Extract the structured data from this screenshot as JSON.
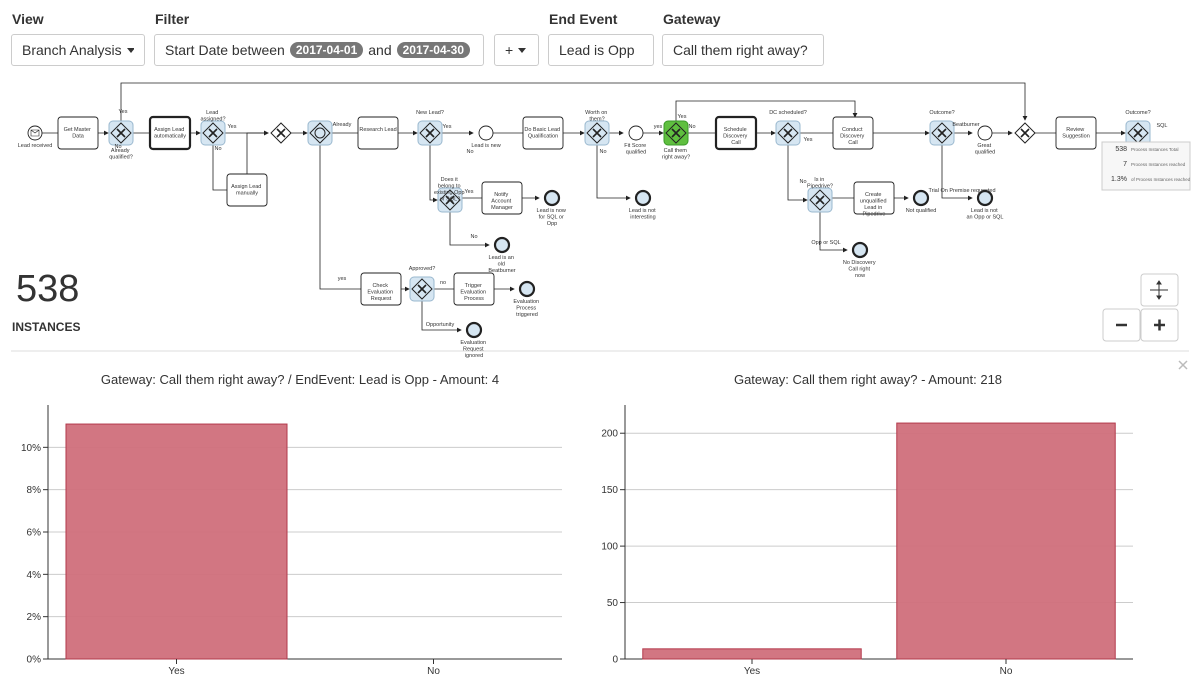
{
  "toolbar": {
    "view_label": "View",
    "view_value": "Branch Analysis",
    "filter_label": "Filter",
    "filter_text": "Start Date between",
    "start_date": "2017-04-01",
    "and_text": "and",
    "end_date": "2017-04-30",
    "add_button": "+",
    "end_event_label": "End Event",
    "end_event_value": "Lead is Opp",
    "gateway_label": "Gateway",
    "gateway_value": "Call them right away?"
  },
  "instances": {
    "count": 538,
    "label": "INSTANCES"
  },
  "diagram": {
    "nodes": [
      {
        "type": "start",
        "label": "Lead received"
      },
      {
        "type": "task",
        "label": "Get Master Data"
      },
      {
        "type": "gateway",
        "label": "Already qualified?"
      },
      {
        "type": "task-bold",
        "label": "Assign Lead automatically"
      },
      {
        "type": "gateway",
        "label": "Lead assigned?"
      },
      {
        "type": "task",
        "label": "Assign Lead manually"
      },
      {
        "type": "parallel",
        "label": null
      },
      {
        "type": "event-gateway",
        "label": null
      },
      {
        "type": "task",
        "label": "Research Lead"
      },
      {
        "type": "gateway",
        "label": "New Lead?"
      },
      {
        "type": "intermediate",
        "label": "Lead is new"
      },
      {
        "type": "task",
        "label": "Do Basic Lead Qualification"
      },
      {
        "type": "gateway",
        "label": "Worth on them?"
      },
      {
        "type": "intermediate",
        "label": "Fit Score qualified"
      },
      {
        "type": "gateway-selected",
        "label": "Call them right away?"
      },
      {
        "type": "task-bold",
        "label": "Schedule Discovery Call"
      },
      {
        "type": "gateway",
        "label": "DC scheduled?"
      },
      {
        "type": "task",
        "label": "Conduct Discovery Call"
      },
      {
        "type": "gateway",
        "label": "Outcome?"
      },
      {
        "type": "intermediate",
        "label": "Great qualified"
      },
      {
        "type": "parallel",
        "label": null
      },
      {
        "type": "task",
        "label": "Review Suggestion"
      },
      {
        "type": "gateway",
        "label": "Outcome?"
      },
      {
        "type": "gateway",
        "label": "Does it belong to existing Opp or SQL?"
      },
      {
        "type": "task",
        "label": "Notify Account Manager"
      },
      {
        "type": "end",
        "label": "Lead is now for SQL or Opp"
      },
      {
        "type": "end",
        "label": "Lead is an old Beatburner"
      },
      {
        "type": "end",
        "label": "Lead is not interesting"
      },
      {
        "type": "gateway",
        "label": "Is in Pipedrive?"
      },
      {
        "type": "task",
        "label": "Create unqualified Lead in Pipedrive"
      },
      {
        "type": "end",
        "label": "Not qualified"
      },
      {
        "type": "end",
        "label": "No Discovery Call right now"
      },
      {
        "type": "end",
        "label": "Lead is not an Opp or SQL"
      },
      {
        "type": "task",
        "label": "Check Evaluation Request"
      },
      {
        "type": "gateway",
        "label": "Approved?"
      },
      {
        "type": "task",
        "label": "Trigger Evaluation Process"
      },
      {
        "type": "end",
        "label": "Evaluation Process triggered"
      },
      {
        "type": "end",
        "label": "Evaluation Request ignored"
      }
    ],
    "edge_labels": [
      "Yes",
      "No",
      "Yes",
      "No",
      "Already",
      "Yes",
      "No",
      "Yes",
      "No",
      "Yes",
      "No",
      "yes",
      "No",
      "Yes",
      "No",
      "Opp or SQL",
      "Beatburner",
      "Trial On Premise requested",
      "yes",
      "no",
      "Opportunity",
      "SQL"
    ],
    "overlay": [
      {
        "value": "538",
        "text": "Process Instances Total"
      },
      {
        "value": "7",
        "text": "Process Instances reached"
      },
      {
        "value": "1.3%",
        "text": "of Process Instances reached"
      }
    ]
  },
  "chart_data": [
    {
      "type": "bar",
      "title": "Gateway: Call them right away? / EndEvent: Lead is Opp - Amount: 4",
      "categories": [
        "Yes",
        "No"
      ],
      "values": [
        11.1,
        0
      ],
      "color": "#d06f7b",
      "ylim": [
        0,
        12
      ],
      "yticks": [
        {
          "value": 0,
          "label": "0%"
        },
        {
          "value": 2,
          "label": "2%"
        },
        {
          "value": 4,
          "label": "4%"
        },
        {
          "value": 6,
          "label": "6%"
        },
        {
          "value": 8,
          "label": "8%"
        },
        {
          "value": 10,
          "label": "10%"
        }
      ],
      "grid": true
    },
    {
      "type": "bar",
      "title": "Gateway: Call them right away? - Amount: 218",
      "categories": [
        "Yes",
        "No"
      ],
      "values": [
        9,
        209
      ],
      "color": "#d06f7b",
      "ylim": [
        0,
        225
      ],
      "yticks": [
        0,
        50,
        100,
        150,
        200
      ],
      "grid": true
    }
  ]
}
